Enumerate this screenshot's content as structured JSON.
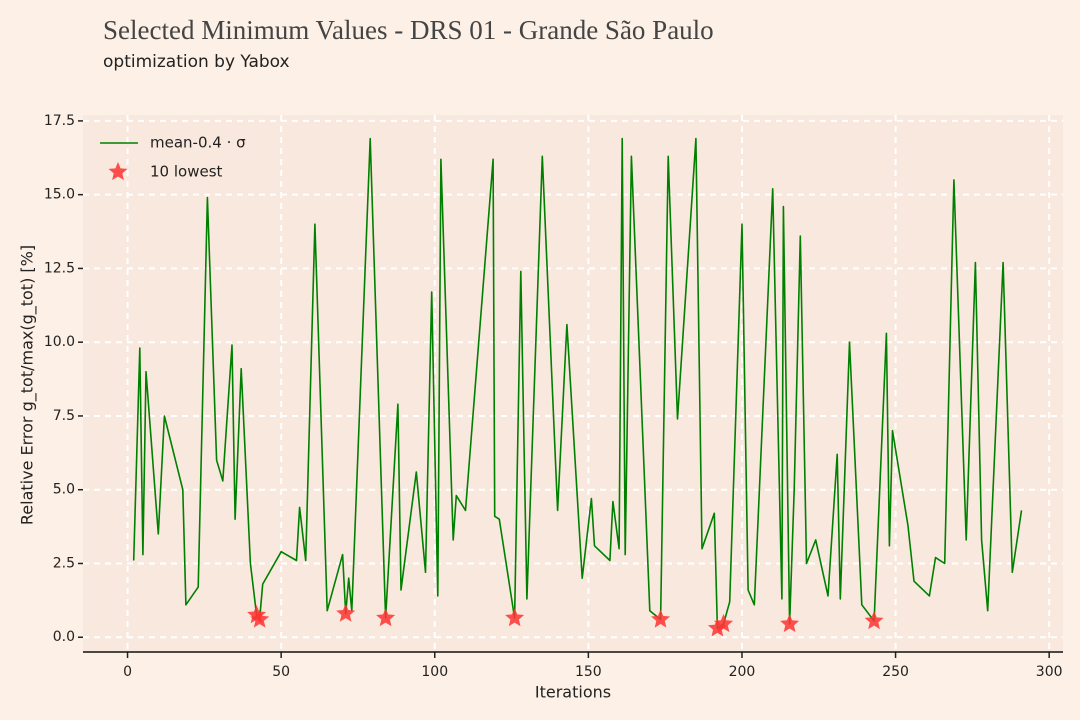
{
  "chart_data": {
    "type": "line",
    "title": "Selected Minimum Values - DRS 01 - Grande São Paulo",
    "subtitle": "optimization by Yabox",
    "xlabel": "Iterations",
    "ylabel": "Relative Error g_tot/max(g_tot) [%]",
    "xlim": [
      -14.5,
      304.5
    ],
    "ylim": [
      -0.5,
      17.7
    ],
    "xticks": [
      0,
      50,
      100,
      150,
      200,
      250,
      300
    ],
    "yticks": [
      {
        "value": 0,
        "label": "0.0"
      },
      {
        "value": 2.5,
        "label": "2.5"
      },
      {
        "value": 5,
        "label": "5.0"
      },
      {
        "value": 7.5,
        "label": "7.5"
      },
      {
        "value": 10,
        "label": "10.0"
      },
      {
        "value": 12.5,
        "label": "12.5"
      },
      {
        "value": 15,
        "label": "15.0"
      },
      {
        "value": 17.5,
        "label": "17.5"
      }
    ],
    "grid": true,
    "legend": "upper left",
    "series": [
      {
        "name": "mean-0.4 · σ",
        "type": "line",
        "color": "#008000",
        "x": [
          2,
          4,
          5,
          6,
          10,
          12,
          18,
          19,
          23,
          26,
          29,
          31,
          34,
          35,
          37,
          40,
          42,
          43,
          44,
          50,
          55,
          56,
          58,
          61,
          65,
          70,
          71,
          72,
          73,
          79,
          84,
          88,
          89,
          94,
          97,
          99,
          101,
          102,
          106,
          107,
          110,
          119,
          119.5,
          121,
          126,
          128,
          130,
          135,
          140,
          143,
          148,
          151,
          152,
          157,
          158,
          160,
          161,
          162,
          164,
          170,
          173.5,
          176,
          179,
          185,
          187,
          191,
          192,
          194,
          196,
          200,
          202,
          204,
          210,
          213,
          213.5,
          215.5,
          217,
          219,
          221,
          224,
          228,
          231,
          232,
          235,
          239,
          243,
          247,
          248,
          249,
          254,
          256,
          261,
          263,
          266,
          269,
          273,
          276,
          278,
          280,
          285,
          288,
          291
        ],
        "values": [
          2.6,
          9.8,
          2.8,
          9.0,
          3.5,
          7.5,
          5.0,
          1.1,
          1.7,
          14.9,
          6.0,
          5.3,
          9.9,
          4.0,
          9.1,
          2.5,
          0.75,
          0.6,
          1.8,
          2.9,
          2.6,
          4.4,
          2.6,
          14.0,
          0.9,
          2.8,
          0.8,
          2.0,
          0.9,
          16.9,
          0.65,
          7.9,
          1.6,
          5.6,
          2.2,
          11.7,
          1.4,
          16.2,
          3.3,
          4.8,
          4.3,
          16.2,
          4.1,
          4.0,
          0.65,
          12.4,
          1.3,
          16.3,
          4.3,
          10.6,
          2.0,
          4.7,
          3.1,
          2.6,
          4.6,
          3.0,
          16.9,
          2.8,
          16.3,
          0.9,
          0.6,
          16.3,
          7.4,
          16.9,
          3.0,
          4.2,
          0.3,
          0.45,
          1.2,
          14.0,
          1.6,
          1.1,
          15.2,
          1.3,
          14.6,
          0.45,
          5.0,
          13.6,
          2.5,
          3.3,
          1.4,
          6.2,
          1.3,
          10.0,
          1.1,
          0.55,
          10.3,
          3.1,
          7.0,
          3.8,
          1.9,
          1.4,
          2.7,
          2.5,
          15.5,
          3.3,
          12.7,
          3.3,
          0.9,
          12.7,
          2.2,
          4.3
        ]
      },
      {
        "name": "10 lowest",
        "type": "scatter",
        "marker": "star",
        "color": "#ff3333",
        "x": [
          42,
          43,
          71,
          84,
          126,
          173.5,
          192,
          194,
          215.5,
          243
        ],
        "values": [
          0.75,
          0.6,
          0.8,
          0.65,
          0.65,
          0.6,
          0.3,
          0.45,
          0.45,
          0.55
        ]
      }
    ]
  }
}
